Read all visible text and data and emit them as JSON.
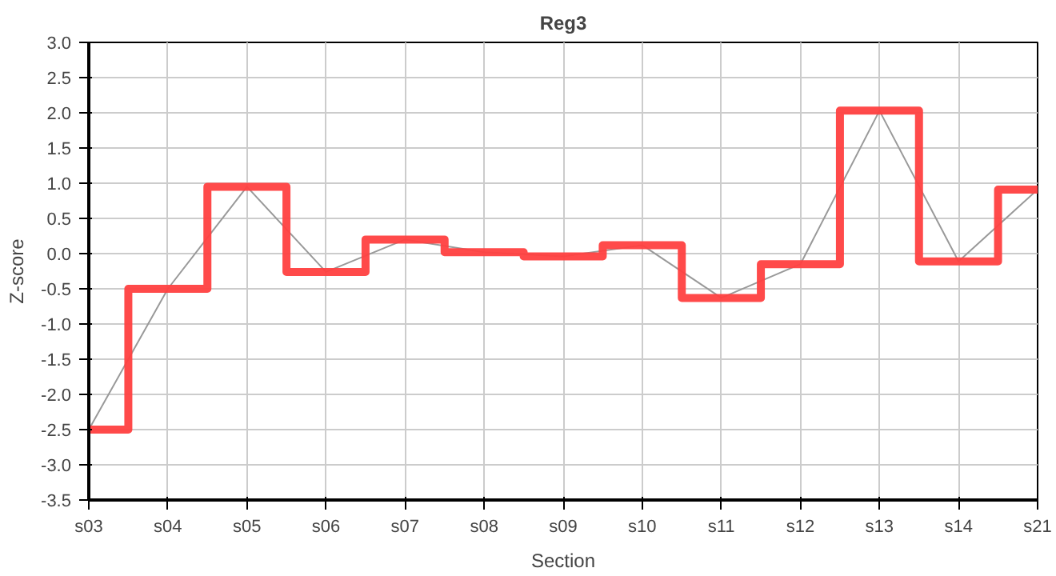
{
  "chart_data": {
    "type": "step",
    "title": "Reg3",
    "xlabel": "Section",
    "ylabel": "Z-score",
    "categories": [
      "s03",
      "s04",
      "s05",
      "s06",
      "s07",
      "s08",
      "s09",
      "s10",
      "s11",
      "s12",
      "s13",
      "s14",
      "s21"
    ],
    "series": [
      {
        "type": "line",
        "color": "#999999",
        "values": [
          -2.5,
          -0.5,
          0.95,
          -0.26,
          0.2,
          0.02,
          -0.04,
          0.12,
          -0.63,
          -0.15,
          2.03,
          -0.11,
          0.91
        ]
      },
      {
        "color": "#ff4040",
        "values": [
          -2.5,
          -0.5,
          0.95,
          -0.26,
          0.2,
          0.02,
          -0.04,
          0.12,
          -0.63,
          -0.15,
          2.03,
          -0.11,
          0.91
        ]
      }
    ],
    "ylim": [
      -3.5,
      3.0
    ],
    "yticks": [
      {
        "value": -3.5,
        "label": "-3.5"
      },
      {
        "value": -3,
        "label": "-3.0"
      },
      {
        "value": -2.5,
        "label": "-2.5"
      },
      {
        "value": -2,
        "label": "-2.0"
      },
      {
        "value": -1.5,
        "label": "-1.5"
      },
      {
        "value": -1,
        "label": "-1.0"
      },
      {
        "value": -0.5,
        "label": "-0.5"
      },
      {
        "value": 0,
        "label": "0.0"
      },
      {
        "value": 0.5,
        "label": "0.5"
      },
      {
        "value": 1,
        "label": "1.0"
      },
      {
        "value": 1.5,
        "label": "1.5"
      },
      {
        "value": 2,
        "label": "2.0"
      },
      {
        "value": 2.5,
        "label": "2.5"
      },
      {
        "value": 3,
        "label": "3.0"
      }
    ],
    "grid": true
  }
}
